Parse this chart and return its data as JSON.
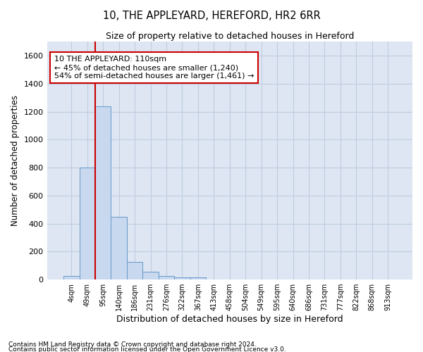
{
  "title1": "10, THE APPLEYARD, HEREFORD, HR2 6RR",
  "title2": "Size of property relative to detached houses in Hereford",
  "xlabel": "Distribution of detached houses by size in Hereford",
  "ylabel": "Number of detached properties",
  "footnote1": "Contains HM Land Registry data © Crown copyright and database right 2024.",
  "footnote2": "Contains public sector information licensed under the Open Government Licence v3.0.",
  "bar_color": "#c8d8ee",
  "bar_edge_color": "#6699cc",
  "grid_color": "#c0cce0",
  "background_color": "#dde6f2",
  "annotation_box_color": "#cc0000",
  "vline_color": "#cc0000",
  "categories": [
    "4sqm",
    "49sqm",
    "95sqm",
    "140sqm",
    "186sqm",
    "231sqm",
    "276sqm",
    "322sqm",
    "367sqm",
    "413sqm",
    "458sqm",
    "504sqm",
    "549sqm",
    "595sqm",
    "640sqm",
    "686sqm",
    "731sqm",
    "777sqm",
    "822sqm",
    "868sqm",
    "913sqm"
  ],
  "values": [
    25,
    800,
    1240,
    450,
    125,
    57,
    27,
    18,
    13,
    0,
    0,
    0,
    0,
    0,
    0,
    0,
    0,
    0,
    0,
    0,
    0
  ],
  "ylim": [
    0,
    1700
  ],
  "yticks": [
    0,
    200,
    400,
    600,
    800,
    1000,
    1200,
    1400,
    1600
  ],
  "vline_x": 2.0,
  "annotation_text": "10 THE APPLEYARD: 110sqm\n← 45% of detached houses are smaller (1,240)\n54% of semi-detached houses are larger (1,461) →"
}
